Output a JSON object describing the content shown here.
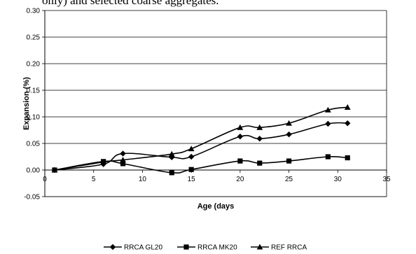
{
  "caption_fragment": "only) and selected coarse aggregates.",
  "chart_data": {
    "type": "line",
    "title": "",
    "xlabel": "Age (days",
    "ylabel": "Expansion (%)",
    "xlim": [
      0,
      35
    ],
    "ylim": [
      -0.05,
      0.3
    ],
    "x_ticks": [
      0,
      5,
      10,
      15,
      20,
      25,
      30,
      35
    ],
    "x_tick_labels": [
      "0",
      "5",
      "10",
      "15",
      "20",
      "25",
      "30",
      "35"
    ],
    "y_ticks": [
      -0.05,
      0,
      0.05,
      0.1,
      0.15,
      0.2,
      0.25,
      0.3
    ],
    "y_tick_labels": [
      "-0.05",
      "0.00",
      "0.05",
      "0.10",
      "0.15",
      "0.20",
      "0.25",
      "0.30"
    ],
    "grid": "horizontal",
    "legend_position": "bottom",
    "series": [
      {
        "name": "RRCA GL20",
        "marker": "diamond",
        "color": "#000000",
        "x": [
          1,
          6,
          8,
          13,
          15,
          20,
          22,
          25,
          29,
          31
        ],
        "y": [
          0.0,
          0.011,
          0.031,
          0.024,
          0.025,
          0.063,
          0.059,
          0.067,
          0.087,
          0.088
        ]
      },
      {
        "name": "RRCA MK20",
        "marker": "square",
        "color": "#000000",
        "x": [
          1,
          6,
          8,
          13,
          15,
          20,
          22,
          25,
          29,
          31
        ],
        "y": [
          0.0,
          0.016,
          0.012,
          -0.005,
          0.001,
          0.017,
          0.013,
          0.017,
          0.025,
          0.023
        ]
      },
      {
        "name": "REF RRCA",
        "marker": "triangle",
        "color": "#000000",
        "x": [
          1,
          6,
          8,
          13,
          15,
          20,
          22,
          25,
          29,
          31
        ],
        "y": [
          0.0,
          0.015,
          0.019,
          0.03,
          0.04,
          0.08,
          0.08,
          0.088,
          0.113,
          0.118
        ]
      }
    ]
  }
}
